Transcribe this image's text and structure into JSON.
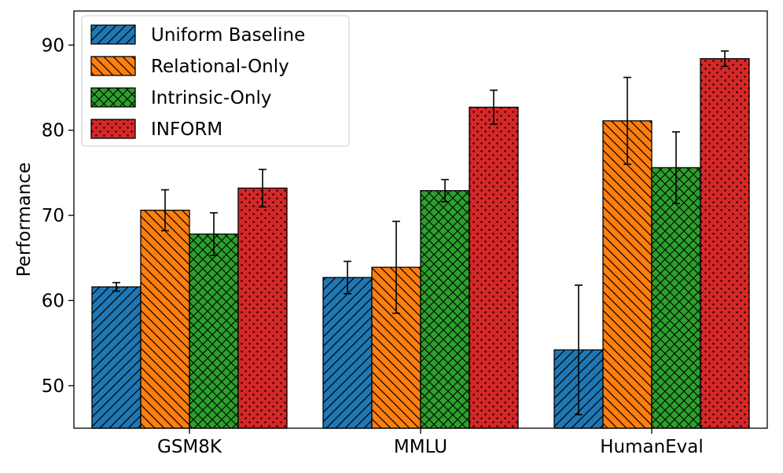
{
  "chart_data": {
    "type": "bar",
    "title": "",
    "xlabel": "",
    "ylabel": "Performance",
    "ylim": [
      45,
      94
    ],
    "yticks": [
      50,
      60,
      70,
      80,
      90
    ],
    "grid": false,
    "legend_position": "top-left",
    "categories": [
      "GSM8K",
      "MMLU",
      "HumanEval"
    ],
    "series": [
      {
        "name": "Uniform Baseline",
        "color": "#1f77b4",
        "hatch": "diagonal-forward",
        "values": [
          61.6,
          62.7,
          54.2
        ],
        "errors": [
          0.5,
          1.9,
          7.6
        ]
      },
      {
        "name": "Relational-Only",
        "color": "#ff7f0e",
        "hatch": "diagonal-back",
        "values": [
          70.6,
          63.9,
          81.1
        ],
        "errors": [
          2.4,
          5.4,
          5.1
        ]
      },
      {
        "name": "Intrinsic-Only",
        "color": "#2ca02c",
        "hatch": "crosshatch",
        "values": [
          67.8,
          72.9,
          75.6
        ],
        "errors": [
          2.5,
          1.3,
          4.2
        ]
      },
      {
        "name": "INFORM",
        "color": "#d62728",
        "hatch": "dots",
        "values": [
          73.2,
          82.7,
          88.4
        ],
        "errors": [
          2.2,
          2.0,
          0.9
        ]
      }
    ]
  }
}
